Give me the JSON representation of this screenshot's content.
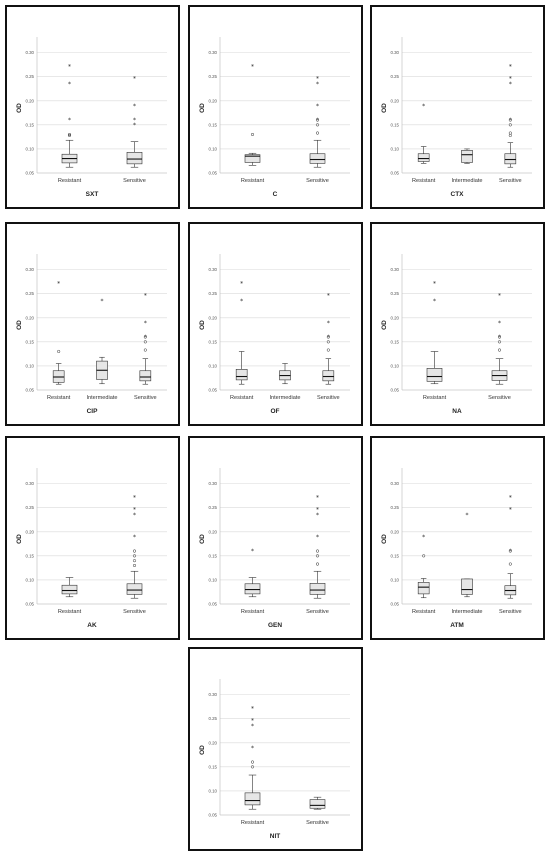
{
  "chart_data": [
    {
      "type": "box",
      "xlabel": "SXT",
      "ylabel": "OD",
      "ylim": [
        0.05,
        0.32
      ],
      "yticks": [
        "0.05",
        "0.10",
        "0.15",
        "0.20",
        "0.25",
        "0.30"
      ],
      "categories": [
        "Resistant",
        "Sensitive"
      ],
      "boxes": [
        {
          "min": 0.062,
          "q1": 0.071,
          "median": 0.08,
          "q3": 0.089,
          "max": 0.118,
          "outliers": [
            0.128,
            0.13
          ],
          "extremes": [
            0.16,
            0.235,
            0.272
          ]
        },
        {
          "min": 0.062,
          "q1": 0.069,
          "median": 0.079,
          "q3": 0.093,
          "max": 0.115,
          "outliers": [],
          "extremes": [
            0.15,
            0.16,
            0.19,
            0.247
          ]
        }
      ]
    },
    {
      "type": "box",
      "xlabel": "C",
      "ylabel": "OD",
      "ylim": [
        0.05,
        0.32
      ],
      "yticks": [
        "0.05",
        "0.10",
        "0.15",
        "0.20",
        "0.25",
        "0.30"
      ],
      "categories": [
        "Resistant",
        "Sensitive"
      ],
      "boxes": [
        {
          "min": 0.066,
          "q1": 0.072,
          "median": 0.085,
          "q3": 0.088,
          "max": 0.091,
          "outliers": [
            0.13
          ],
          "extremes": [
            0.272
          ]
        },
        {
          "min": 0.062,
          "q1": 0.07,
          "median": 0.078,
          "q3": 0.09,
          "max": 0.118,
          "outliers": [
            0.133,
            0.15,
            0.16
          ],
          "extremes": [
            0.16,
            0.19,
            0.235,
            0.247
          ]
        }
      ]
    },
    {
      "type": "box",
      "xlabel": "CTX",
      "ylabel": "OD",
      "ylim": [
        0.05,
        0.32
      ],
      "yticks": [
        "0.05",
        "0.10",
        "0.15",
        "0.20",
        "0.25",
        "0.30"
      ],
      "categories": [
        "Resistant",
        "Intermediate",
        "Sensitive"
      ],
      "boxes": [
        {
          "min": 0.07,
          "q1": 0.074,
          "median": 0.08,
          "q3": 0.09,
          "max": 0.105,
          "outliers": [],
          "extremes": [
            0.19
          ]
        },
        {
          "min": 0.07,
          "q1": 0.072,
          "median": 0.088,
          "q3": 0.097,
          "max": 0.1,
          "outliers": [],
          "extremes": []
        },
        {
          "min": 0.062,
          "q1": 0.069,
          "median": 0.078,
          "q3": 0.09,
          "max": 0.113,
          "outliers": [
            0.128,
            0.133,
            0.15,
            0.16
          ],
          "extremes": [
            0.16,
            0.235,
            0.247,
            0.272
          ]
        }
      ]
    },
    {
      "type": "box",
      "xlabel": "CIP",
      "ylabel": "OD",
      "ylim": [
        0.05,
        0.32
      ],
      "yticks": [
        "0.05",
        "0.10",
        "0.15",
        "0.20",
        "0.25",
        "0.30"
      ],
      "categories": [
        "Resistant",
        "Intermediate",
        "Sensitive"
      ],
      "boxes": [
        {
          "min": 0.062,
          "q1": 0.066,
          "median": 0.077,
          "q3": 0.09,
          "max": 0.105,
          "outliers": [
            0.13
          ],
          "extremes": [
            0.272
          ]
        },
        {
          "min": 0.063,
          "q1": 0.072,
          "median": 0.091,
          "q3": 0.11,
          "max": 0.118,
          "outliers": [],
          "extremes": [
            0.235
          ]
        },
        {
          "min": 0.062,
          "q1": 0.069,
          "median": 0.077,
          "q3": 0.09,
          "max": 0.115,
          "outliers": [
            0.133,
            0.15,
            0.16
          ],
          "extremes": [
            0.16,
            0.19,
            0.247
          ]
        }
      ]
    },
    {
      "type": "box",
      "xlabel": "OF",
      "ylabel": "OD",
      "ylim": [
        0.05,
        0.32
      ],
      "yticks": [
        "0.05",
        "0.10",
        "0.15",
        "0.20",
        "0.25",
        "0.30"
      ],
      "categories": [
        "Resistant",
        "Intermediate",
        "Sensitive"
      ],
      "boxes": [
        {
          "min": 0.062,
          "q1": 0.071,
          "median": 0.078,
          "q3": 0.093,
          "max": 0.13,
          "outliers": [],
          "extremes": [
            0.235,
            0.272
          ]
        },
        {
          "min": 0.063,
          "q1": 0.071,
          "median": 0.08,
          "q3": 0.09,
          "max": 0.105,
          "outliers": [],
          "extremes": []
        },
        {
          "min": 0.062,
          "q1": 0.069,
          "median": 0.078,
          "q3": 0.09,
          "max": 0.115,
          "outliers": [
            0.133,
            0.15,
            0.16
          ],
          "extremes": [
            0.16,
            0.19,
            0.247
          ]
        }
      ]
    },
    {
      "type": "box",
      "xlabel": "NA",
      "ylabel": "OD",
      "ylim": [
        0.05,
        0.32
      ],
      "yticks": [
        "0.05",
        "0.10",
        "0.15",
        "0.20",
        "0.25",
        "0.30"
      ],
      "categories": [
        "Resistant",
        "Sensitive"
      ],
      "boxes": [
        {
          "min": 0.063,
          "q1": 0.068,
          "median": 0.078,
          "q3": 0.095,
          "max": 0.13,
          "outliers": [],
          "extremes": [
            0.235,
            0.272
          ]
        },
        {
          "min": 0.062,
          "q1": 0.07,
          "median": 0.08,
          "q3": 0.09,
          "max": 0.115,
          "outliers": [
            0.133,
            0.15,
            0.16
          ],
          "extremes": [
            0.16,
            0.19,
            0.247
          ]
        }
      ]
    },
    {
      "type": "box",
      "xlabel": "AK",
      "ylabel": "OD",
      "ylim": [
        0.05,
        0.32
      ],
      "yticks": [
        "0.05",
        "0.10",
        "0.15",
        "0.20",
        "0.25",
        "0.30"
      ],
      "categories": [
        "Resistant",
        "Sensitive"
      ],
      "boxes": [
        {
          "min": 0.065,
          "q1": 0.071,
          "median": 0.078,
          "q3": 0.089,
          "max": 0.105,
          "outliers": [],
          "extremes": []
        },
        {
          "min": 0.062,
          "q1": 0.07,
          "median": 0.079,
          "q3": 0.092,
          "max": 0.118,
          "outliers": [
            0.13,
            0.14,
            0.15,
            0.16
          ],
          "extremes": [
            0.19,
            0.235,
            0.247,
            0.272
          ]
        }
      ]
    },
    {
      "type": "box",
      "xlabel": "GEN",
      "ylabel": "OD",
      "ylim": [
        0.05,
        0.32
      ],
      "yticks": [
        "0.05",
        "0.10",
        "0.15",
        "0.20",
        "0.25",
        "0.30"
      ],
      "categories": [
        "Resistant",
        "Sensitive"
      ],
      "boxes": [
        {
          "min": 0.065,
          "q1": 0.071,
          "median": 0.08,
          "q3": 0.092,
          "max": 0.105,
          "outliers": [],
          "extremes": [
            0.16
          ]
        },
        {
          "min": 0.062,
          "q1": 0.07,
          "median": 0.079,
          "q3": 0.093,
          "max": 0.118,
          "outliers": [
            0.133,
            0.15,
            0.16
          ],
          "extremes": [
            0.19,
            0.235,
            0.247,
            0.272
          ]
        }
      ]
    },
    {
      "type": "box",
      "xlabel": "ATM",
      "ylabel": "OD",
      "ylim": [
        0.05,
        0.32
      ],
      "yticks": [
        "0.05",
        "0.10",
        "0.15",
        "0.20",
        "0.25",
        "0.30"
      ],
      "categories": [
        "Resistant",
        "Intermediate",
        "Sensitive"
      ],
      "boxes": [
        {
          "min": 0.063,
          "q1": 0.071,
          "median": 0.085,
          "q3": 0.095,
          "max": 0.103,
          "outliers": [
            0.15
          ],
          "extremes": [
            0.19
          ]
        },
        {
          "min": 0.065,
          "q1": 0.07,
          "median": 0.08,
          "q3": 0.102,
          "max": 0.102,
          "outliers": [],
          "extremes": [
            0.235
          ]
        },
        {
          "min": 0.062,
          "q1": 0.069,
          "median": 0.078,
          "q3": 0.088,
          "max": 0.113,
          "outliers": [
            0.133,
            0.16
          ],
          "extremes": [
            0.16,
            0.247,
            0.272
          ]
        }
      ]
    },
    {
      "type": "box",
      "xlabel": "NIT",
      "ylabel": "OD",
      "ylim": [
        0.05,
        0.32
      ],
      "yticks": [
        "0.05",
        "0.10",
        "0.15",
        "0.20",
        "0.25",
        "0.30"
      ],
      "categories": [
        "Resistant",
        "Sensitive"
      ],
      "boxes": [
        {
          "min": 0.062,
          "q1": 0.071,
          "median": 0.08,
          "q3": 0.096,
          "max": 0.133,
          "outliers": [
            0.15,
            0.16
          ],
          "extremes": [
            0.19,
            0.235,
            0.247,
            0.272
          ]
        },
        {
          "min": 0.062,
          "q1": 0.064,
          "median": 0.07,
          "q3": 0.082,
          "max": 0.087,
          "outliers": [],
          "extremes": []
        }
      ]
    }
  ]
}
